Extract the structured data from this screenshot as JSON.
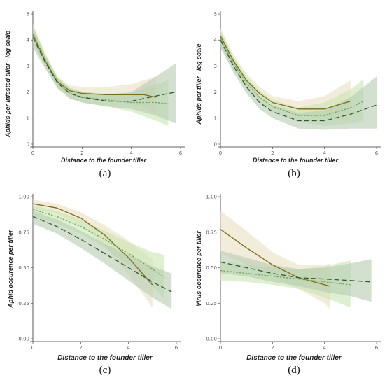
{
  "figure": {
    "colors": {
      "brown": "#7f6a16",
      "brown_band": "#e9dfc3",
      "light_green": "#6aa84f",
      "light_green_band": "#c9e4b3",
      "dark_green": "#2e5a2e",
      "dark_green_band": "#b6ccb0",
      "axis": "#333333"
    }
  },
  "chart_data": [
    {
      "type": "line",
      "panel_label": "(a)",
      "xlabel": "Distance to the founder tiller",
      "ylabel": "Aphids per infested tiller - log scale",
      "xlim": [
        0,
        6
      ],
      "ylim": [
        0,
        5
      ],
      "xticks": [
        "0",
        "2",
        "4",
        "6"
      ],
      "yticks": [
        "0",
        "1",
        "2",
        "3",
        "4",
        "5"
      ],
      "grid": false,
      "series": [
        {
          "style": "solid",
          "color": "#7f6a16",
          "band": "#e9dfc3",
          "x": [
            0,
            0.5,
            1,
            1.5,
            2,
            3,
            4,
            4.5,
            5
          ],
          "y": [
            4.2,
            3.2,
            2.4,
            2.05,
            1.95,
            1.9,
            1.9,
            1.9,
            1.8
          ],
          "lo": [
            3.85,
            3.0,
            2.2,
            1.85,
            1.75,
            1.65,
            1.55,
            1.4,
            1.2
          ],
          "hi": [
            4.55,
            3.45,
            2.6,
            2.25,
            2.2,
            2.2,
            2.3,
            2.45,
            2.6
          ]
        },
        {
          "style": "dotted",
          "color": "#6aa84f",
          "band": "#c9e4b3",
          "x": [
            0,
            0.5,
            1,
            1.5,
            2,
            3,
            4,
            5,
            5.5
          ],
          "y": [
            4.25,
            3.25,
            2.35,
            1.95,
            1.8,
            1.7,
            1.6,
            1.6,
            1.55
          ],
          "lo": [
            3.9,
            3.0,
            2.15,
            1.75,
            1.6,
            1.45,
            1.25,
            0.9,
            0.7
          ],
          "hi": [
            4.6,
            3.5,
            2.55,
            2.15,
            2.0,
            1.95,
            1.95,
            2.3,
            2.45
          ]
        },
        {
          "style": "dashed",
          "color": "#2e5a2e",
          "band": "#b6ccb0",
          "x": [
            0,
            0.5,
            1,
            1.5,
            2,
            3,
            4,
            5,
            5.8
          ],
          "y": [
            4.1,
            3.15,
            2.35,
            1.95,
            1.8,
            1.65,
            1.65,
            1.85,
            2.0
          ],
          "lo": [
            3.7,
            2.9,
            2.15,
            1.75,
            1.6,
            1.45,
            1.35,
            1.1,
            0.8
          ],
          "hi": [
            4.5,
            3.4,
            2.55,
            2.15,
            2.0,
            1.9,
            2.0,
            2.6,
            3.1
          ]
        }
      ]
    },
    {
      "type": "line",
      "panel_label": "(b)",
      "xlabel": "Distance to the founder tiller",
      "ylabel": "Aphids per tiller - log scale",
      "xlim": [
        0,
        6
      ],
      "ylim": [
        0,
        5
      ],
      "xticks": [
        "0",
        "2",
        "4",
        "6"
      ],
      "yticks": [
        "0",
        "1",
        "2",
        "3",
        "4",
        "5"
      ],
      "grid": false,
      "series": [
        {
          "style": "solid",
          "color": "#7f6a16",
          "band": "#e9dfc3",
          "x": [
            0,
            0.5,
            1,
            1.5,
            2,
            3,
            4,
            5
          ],
          "y": [
            4.15,
            3.2,
            2.45,
            1.95,
            1.6,
            1.35,
            1.35,
            1.65
          ],
          "lo": [
            3.85,
            2.95,
            2.2,
            1.75,
            1.4,
            1.1,
            1.0,
            0.95
          ],
          "hi": [
            4.45,
            3.45,
            2.7,
            2.2,
            1.85,
            1.65,
            1.85,
            2.45
          ]
        },
        {
          "style": "dotted",
          "color": "#6aa84f",
          "band": "#c9e4b3",
          "x": [
            0,
            0.5,
            1,
            1.5,
            2,
            3,
            4,
            5,
            5.5
          ],
          "y": [
            4.05,
            3.1,
            2.35,
            1.8,
            1.45,
            1.1,
            1.1,
            1.4,
            1.65
          ],
          "lo": [
            3.75,
            2.85,
            2.1,
            1.6,
            1.25,
            0.85,
            0.7,
            0.8,
            0.85
          ],
          "hi": [
            4.35,
            3.35,
            2.6,
            2.05,
            1.7,
            1.4,
            1.6,
            2.1,
            2.5
          ]
        },
        {
          "style": "dashed",
          "color": "#2e5a2e",
          "band": "#b6ccb0",
          "x": [
            0,
            0.5,
            1,
            1.5,
            2,
            3,
            4,
            5,
            6
          ],
          "y": [
            4.0,
            3.0,
            2.2,
            1.6,
            1.25,
            0.9,
            0.9,
            1.15,
            1.5
          ],
          "lo": [
            3.7,
            2.75,
            1.95,
            1.35,
            1.0,
            0.6,
            0.55,
            0.6,
            0.6
          ],
          "hi": [
            4.3,
            3.25,
            2.45,
            1.85,
            1.5,
            1.2,
            1.3,
            1.8,
            2.6
          ]
        }
      ]
    },
    {
      "type": "line",
      "panel_label": "(c)",
      "xlabel": "Distance to the founder tiller",
      "ylabel": "Aphid occurence per tiller",
      "xlim": [
        0,
        6
      ],
      "ylim": [
        0,
        1
      ],
      "xticks": [
        "0",
        "2",
        "4",
        "6"
      ],
      "yticks": [
        "0.00",
        "0.25",
        "0.50",
        "0.75",
        "1.00"
      ],
      "grid": false,
      "series": [
        {
          "style": "solid",
          "color": "#7f6a16",
          "band": "#e9dfc3",
          "x": [
            0,
            1,
            2,
            3,
            4,
            5
          ],
          "y": [
            0.95,
            0.92,
            0.85,
            0.73,
            0.57,
            0.38
          ],
          "lo": [
            0.91,
            0.88,
            0.8,
            0.65,
            0.45,
            0.22
          ],
          "hi": [
            0.98,
            0.95,
            0.89,
            0.8,
            0.69,
            0.56
          ]
        },
        {
          "style": "dotted",
          "color": "#6aa84f",
          "band": "#c9e4b3",
          "x": [
            0,
            1,
            2,
            3,
            4,
            5,
            5.5
          ],
          "y": [
            0.91,
            0.86,
            0.79,
            0.7,
            0.6,
            0.49,
            0.43
          ],
          "lo": [
            0.86,
            0.81,
            0.74,
            0.64,
            0.52,
            0.37,
            0.28
          ],
          "hi": [
            0.94,
            0.9,
            0.84,
            0.76,
            0.68,
            0.61,
            0.59
          ]
        },
        {
          "style": "dashed",
          "color": "#2e5a2e",
          "band": "#b6ccb0",
          "x": [
            0,
            1,
            2,
            3,
            4,
            5,
            5.8
          ],
          "y": [
            0.86,
            0.79,
            0.7,
            0.6,
            0.5,
            0.4,
            0.33
          ],
          "lo": [
            0.81,
            0.74,
            0.64,
            0.53,
            0.41,
            0.29,
            0.21
          ],
          "hi": [
            0.9,
            0.84,
            0.76,
            0.67,
            0.59,
            0.51,
            0.46
          ]
        }
      ]
    },
    {
      "type": "line",
      "panel_label": "(d)",
      "xlabel": "Distance to the founder tiller",
      "ylabel": "Virus occurence per tiller",
      "xlim": [
        0,
        6
      ],
      "ylim": [
        0,
        1
      ],
      "xticks": [
        "0",
        "2",
        "4",
        "6"
      ],
      "yticks": [
        "0.00",
        "0.25",
        "0.50",
        "0.75",
        "1.00"
      ],
      "grid": false,
      "series": [
        {
          "style": "solid",
          "color": "#7f6a16",
          "band": "#e9dfc3",
          "x": [
            0,
            1,
            2,
            3,
            4,
            4.2
          ],
          "y": [
            0.77,
            0.64,
            0.52,
            0.43,
            0.38,
            0.37
          ],
          "lo": [
            0.6,
            0.52,
            0.44,
            0.35,
            0.25,
            0.21
          ],
          "hi": [
            0.9,
            0.76,
            0.61,
            0.52,
            0.52,
            0.53
          ]
        },
        {
          "style": "dotted",
          "color": "#6aa84f",
          "band": "#c9e4b3",
          "x": [
            0,
            1,
            2,
            3,
            4,
            5
          ],
          "y": [
            0.48,
            0.46,
            0.44,
            0.42,
            0.4,
            0.38
          ],
          "lo": [
            0.41,
            0.4,
            0.38,
            0.35,
            0.29,
            0.22
          ],
          "hi": [
            0.55,
            0.52,
            0.5,
            0.49,
            0.51,
            0.55
          ]
        },
        {
          "style": "dashed",
          "color": "#2e5a2e",
          "band": "#b6ccb0",
          "x": [
            0,
            1,
            2,
            3,
            4,
            5,
            5.8
          ],
          "y": [
            0.54,
            0.5,
            0.46,
            0.43,
            0.42,
            0.41,
            0.4
          ],
          "lo": [
            0.46,
            0.44,
            0.4,
            0.37,
            0.33,
            0.3,
            0.26
          ],
          "hi": [
            0.62,
            0.57,
            0.52,
            0.49,
            0.5,
            0.53,
            0.56
          ]
        }
      ]
    }
  ]
}
